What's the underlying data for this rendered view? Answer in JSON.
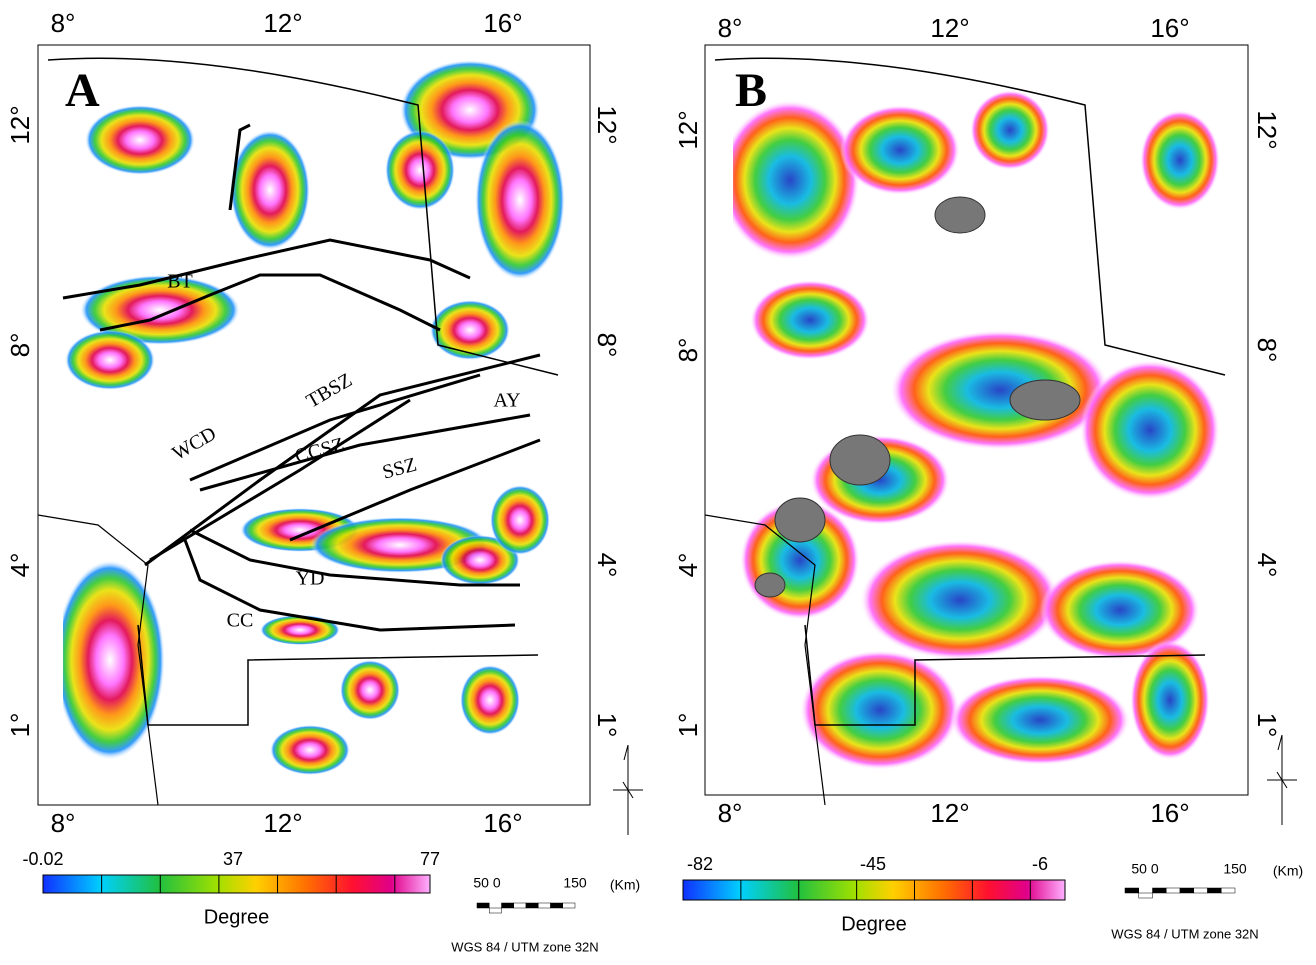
{
  "panels": [
    {
      "label": "A",
      "top_ticks": [
        "8°",
        "12°",
        "16°"
      ],
      "bottom_ticks": [
        "8°",
        "12°",
        "16°"
      ],
      "left_ticks": [
        "12°",
        "8°",
        "4°",
        "1°"
      ],
      "right_ticks": [
        "12°",
        "8°",
        "4°",
        "1°"
      ],
      "features": [
        "BT",
        "TBSZ",
        "WCD",
        "CCSZ",
        "AY",
        "SSZ",
        "YD",
        "CC"
      ],
      "colorbar": {
        "ticks": [
          "-0.02",
          "37",
          "77"
        ],
        "label": "Degree"
      },
      "scale": {
        "left": "50 0",
        "right": "150",
        "unit": "(Km)"
      },
      "projection": "WGS 84 / UTM zone 32N"
    },
    {
      "label": "B",
      "top_ticks": [
        "8°",
        "12°",
        "16°"
      ],
      "bottom_ticks": [
        "8°",
        "12°",
        "16°"
      ],
      "left_ticks": [
        "12°",
        "8°",
        "4°",
        "1°"
      ],
      "right_ticks": [
        "12°",
        "8°",
        "4°",
        "1°"
      ],
      "colorbar": {
        "ticks": [
          "-82",
          "-45",
          "-6"
        ],
        "label": "Degree"
      },
      "scale": {
        "left": "50 0",
        "right": "150",
        "unit": "(Km)"
      },
      "projection": "WGS 84 / UTM zone 32N"
    }
  ]
}
